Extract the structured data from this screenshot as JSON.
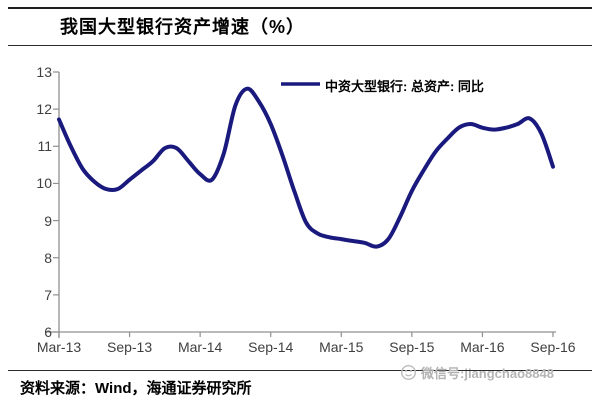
{
  "header": {
    "title": "我国大型银行资产增速（%）"
  },
  "footer": {
    "source_label": "资料来源：Wind，海通证券研究所",
    "watermark_icon": "wechat-icon",
    "watermark_text": "微信号:jiangchao8848"
  },
  "colors": {
    "line": "#1a1a7e",
    "axis": "#909090",
    "tick_label": "#3f3f3f",
    "watermark": "#b4b4b4"
  },
  "chart_data": {
    "type": "line",
    "title": "我国大型银行资产增速（%）",
    "xlabel": "",
    "ylabel": "",
    "ylim": [
      6,
      13
    ],
    "grid": false,
    "legend": {
      "label": "中资大型银行: 总资产: 同比",
      "position": "top-center",
      "color": "#1a1a7e"
    },
    "x_ticklabels": [
      "Mar-13",
      "Sep-13",
      "Mar-14",
      "Sep-14",
      "Mar-15",
      "Sep-15",
      "Mar-16",
      "Sep-16"
    ],
    "y_ticklabels": [
      "13",
      "12",
      "11",
      "10",
      "9",
      "8",
      "7",
      "6"
    ],
    "x": [
      "2013-03",
      "2013-04",
      "2013-05",
      "2013-06",
      "2013-07",
      "2013-08",
      "2013-09",
      "2013-10",
      "2013-11",
      "2013-12",
      "2014-01",
      "2014-02",
      "2014-03",
      "2014-04",
      "2014-05",
      "2014-06",
      "2014-07",
      "2014-08",
      "2014-09",
      "2014-10",
      "2014-11",
      "2014-12",
      "2015-01",
      "2015-02",
      "2015-03",
      "2015-04",
      "2015-05",
      "2015-06",
      "2015-07",
      "2015-08",
      "2015-09",
      "2015-10",
      "2015-11",
      "2015-12",
      "2016-01",
      "2016-02",
      "2016-03",
      "2016-04",
      "2016-05",
      "2016-06",
      "2016-07",
      "2016-08",
      "2016-09"
    ],
    "series": [
      {
        "name": "中资大型银行: 总资产: 同比",
        "color": "#1a1a7e",
        "values": [
          11.72,
          11.0,
          10.4,
          10.05,
          9.85,
          9.85,
          10.1,
          10.35,
          10.6,
          10.95,
          10.95,
          10.6,
          10.25,
          10.1,
          10.8,
          12.1,
          12.55,
          12.2,
          11.6,
          10.75,
          9.8,
          8.95,
          8.65,
          8.55,
          8.5,
          8.45,
          8.4,
          8.3,
          8.5,
          9.1,
          9.8,
          10.35,
          10.85,
          11.2,
          11.5,
          11.6,
          11.5,
          11.45,
          11.5,
          11.6,
          11.75,
          11.35,
          10.45
        ]
      }
    ]
  }
}
